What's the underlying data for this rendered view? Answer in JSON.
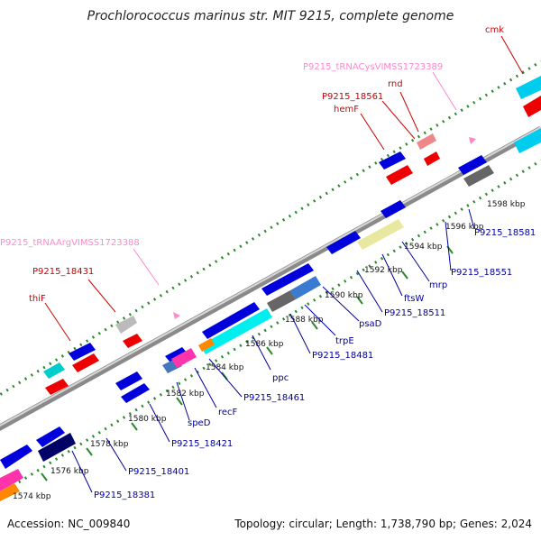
{
  "title": "Prochlorococcus marinus str. MIT 9215, complete genome",
  "footer": {
    "accession": "Accession: NC_009840",
    "topology": "Topology: circular; Length: 1,738,790 bp; Genes: 2,024"
  },
  "colors": {
    "forward_cds": "#0000dd",
    "reverse_cds": "#ee0000",
    "trna_label": "#ff88cc",
    "rrna": "#00e0e0",
    "other_gene": "#e8e8a0",
    "backbone": "#8a8a8a",
    "forward_label": "#000099",
    "reverse_label": "#cc0000"
  },
  "ticks": [
    {
      "label": "1574 kbp"
    },
    {
      "label": "1576 kbp"
    },
    {
      "label": "1578 kbp"
    },
    {
      "label": "1580 kbp"
    },
    {
      "label": "1582 kbp"
    },
    {
      "label": "1584 kbp"
    },
    {
      "label": "1586 kbp"
    },
    {
      "label": "1588 kbp"
    },
    {
      "label": "1590 kbp"
    },
    {
      "label": "1592 kbp"
    },
    {
      "label": "1594 kbp"
    },
    {
      "label": "1596 kbp"
    },
    {
      "label": "1598 kbp"
    }
  ],
  "gene_labels_reverse": [
    {
      "name": "thiF"
    },
    {
      "name": "P9215_18431"
    },
    {
      "name": "P9215_tRNAArgVIMSS1723388"
    },
    {
      "name": "hemF"
    },
    {
      "name": "P9215_18561"
    },
    {
      "name": "rnd"
    },
    {
      "name": "P9215_tRNACysVIMSS1723389"
    },
    {
      "name": "cmk"
    }
  ],
  "gene_labels_forward": [
    {
      "name": "P9215_18381"
    },
    {
      "name": "P9215_18401"
    },
    {
      "name": "P9215_18421"
    },
    {
      "name": "speD"
    },
    {
      "name": "recF"
    },
    {
      "name": "P9215_18461"
    },
    {
      "name": "ppc"
    },
    {
      "name": "P9215_18481"
    },
    {
      "name": "trpE"
    },
    {
      "name": "psaD"
    },
    {
      "name": "P9215_18511"
    },
    {
      "name": "ftsW"
    },
    {
      "name": "mrp"
    },
    {
      "name": "P9215_18551"
    },
    {
      "name": "P9215_18581"
    }
  ]
}
